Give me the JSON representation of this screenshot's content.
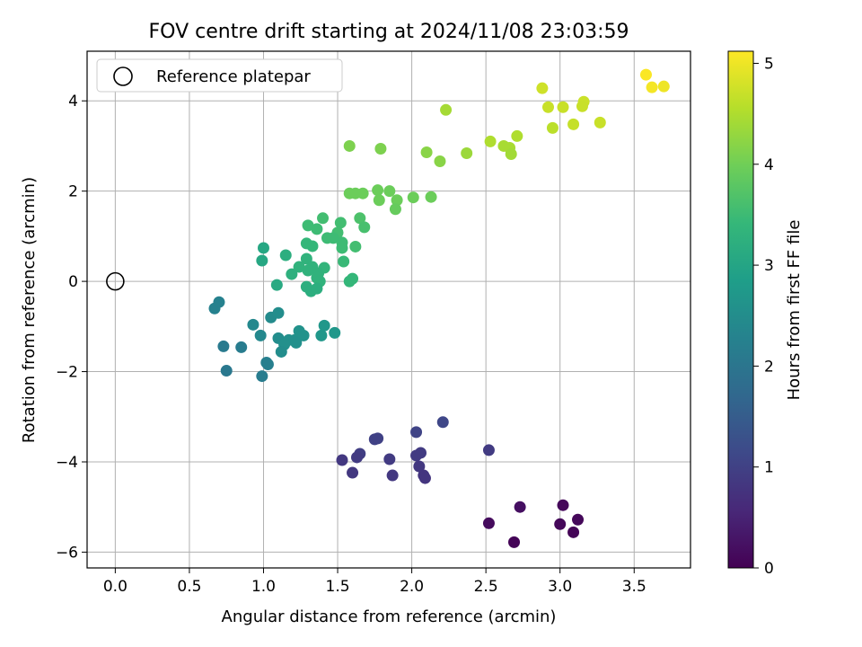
{
  "chart_data": {
    "type": "scatter",
    "title": "FOV centre drift starting at 2024/11/08 23:03:59",
    "xlabel": "Angular distance from reference (arcmin)",
    "ylabel": "Rotation from reference (arcmin)",
    "xlim": [
      -0.19,
      3.88
    ],
    "ylim": [
      -6.35,
      5.1
    ],
    "xticks": [
      "0.0",
      "0.5",
      "1.0",
      "1.5",
      "2.0",
      "2.5",
      "3.0",
      "3.5"
    ],
    "xtick_values": [
      0,
      0.5,
      1.0,
      1.5,
      2.0,
      2.5,
      3.0,
      3.5
    ],
    "yticks": [
      "−6",
      "−4",
      "−2",
      "0",
      "2",
      "4"
    ],
    "ytick_values": [
      -6,
      -4,
      -2,
      0,
      2,
      4
    ],
    "grid": true,
    "legend": {
      "placement": "top-left",
      "entries": [
        "Reference platepar"
      ]
    },
    "reference_point": [
      0,
      0
    ],
    "colorbar": {
      "label": "Hours from first FF file",
      "range": [
        0,
        5.12
      ],
      "ticks": [
        "0",
        "1",
        "2",
        "3",
        "4",
        "5"
      ],
      "tick_values": [
        0,
        1,
        2,
        3,
        4,
        5
      ],
      "colormap": [
        "#440154",
        "#482878",
        "#3e4989",
        "#31688e",
        "#26828e",
        "#1f9e89",
        "#35b779",
        "#6ece58",
        "#b5de2b",
        "#fde725"
      ]
    },
    "points": [
      {
        "x": 3.58,
        "y": 4.58,
        "c": 5.1
      },
      {
        "x": 3.62,
        "y": 4.3,
        "c": 5.05
      },
      {
        "x": 3.7,
        "y": 4.32,
        "c": 5.0
      },
      {
        "x": 2.88,
        "y": 4.28,
        "c": 4.75
      },
      {
        "x": 2.92,
        "y": 3.86,
        "c": 4.7
      },
      {
        "x": 3.02,
        "y": 3.86,
        "c": 4.7
      },
      {
        "x": 3.16,
        "y": 3.98,
        "c": 4.72
      },
      {
        "x": 3.15,
        "y": 3.88,
        "c": 4.7
      },
      {
        "x": 3.09,
        "y": 3.48,
        "c": 4.68
      },
      {
        "x": 3.27,
        "y": 3.52,
        "c": 4.7
      },
      {
        "x": 2.95,
        "y": 3.4,
        "c": 4.6
      },
      {
        "x": 2.71,
        "y": 3.22,
        "c": 4.5
      },
      {
        "x": 2.53,
        "y": 3.1,
        "c": 4.5
      },
      {
        "x": 2.62,
        "y": 3.0,
        "c": 4.45
      },
      {
        "x": 2.66,
        "y": 2.96,
        "c": 4.45
      },
      {
        "x": 2.67,
        "y": 2.82,
        "c": 4.4
      },
      {
        "x": 2.23,
        "y": 3.8,
        "c": 4.42
      },
      {
        "x": 2.37,
        "y": 2.84,
        "c": 4.35
      },
      {
        "x": 2.1,
        "y": 2.86,
        "c": 4.2
      },
      {
        "x": 2.19,
        "y": 2.66,
        "c": 4.2
      },
      {
        "x": 1.58,
        "y": 3.0,
        "c": 4.1
      },
      {
        "x": 1.79,
        "y": 2.94,
        "c": 4.1
      },
      {
        "x": 1.58,
        "y": 1.95,
        "c": 3.95
      },
      {
        "x": 1.62,
        "y": 1.95,
        "c": 3.95
      },
      {
        "x": 1.67,
        "y": 1.95,
        "c": 3.95
      },
      {
        "x": 1.77,
        "y": 2.02,
        "c": 3.95
      },
      {
        "x": 1.85,
        "y": 2.0,
        "c": 3.95
      },
      {
        "x": 1.78,
        "y": 1.8,
        "c": 3.95
      },
      {
        "x": 1.9,
        "y": 1.8,
        "c": 3.95
      },
      {
        "x": 1.89,
        "y": 1.6,
        "c": 3.9
      },
      {
        "x": 2.01,
        "y": 1.86,
        "c": 3.95
      },
      {
        "x": 2.13,
        "y": 1.87,
        "c": 3.95
      },
      {
        "x": 1.3,
        "y": 1.24,
        "c": 3.5
      },
      {
        "x": 1.36,
        "y": 1.16,
        "c": 3.5
      },
      {
        "x": 1.4,
        "y": 1.4,
        "c": 3.55
      },
      {
        "x": 1.52,
        "y": 1.3,
        "c": 3.55
      },
      {
        "x": 1.5,
        "y": 1.08,
        "c": 3.55
      },
      {
        "x": 1.43,
        "y": 0.96,
        "c": 3.5
      },
      {
        "x": 1.47,
        "y": 0.96,
        "c": 3.5
      },
      {
        "x": 1.65,
        "y": 1.4,
        "c": 3.65
      },
      {
        "x": 1.68,
        "y": 1.2,
        "c": 3.6
      },
      {
        "x": 1.29,
        "y": 0.84,
        "c": 3.4
      },
      {
        "x": 1.33,
        "y": 0.78,
        "c": 3.4
      },
      {
        "x": 1.53,
        "y": 0.86,
        "c": 3.5
      },
      {
        "x": 1.53,
        "y": 0.74,
        "c": 3.5
      },
      {
        "x": 1.62,
        "y": 0.77,
        "c": 3.55
      },
      {
        "x": 1.15,
        "y": 0.58,
        "c": 3.2
      },
      {
        "x": 1.29,
        "y": 0.5,
        "c": 3.3
      },
      {
        "x": 1.24,
        "y": 0.32,
        "c": 3.3
      },
      {
        "x": 1.33,
        "y": 0.32,
        "c": 3.3
      },
      {
        "x": 1.41,
        "y": 0.3,
        "c": 3.35
      },
      {
        "x": 1.3,
        "y": 0.24,
        "c": 3.3
      },
      {
        "x": 1.37,
        "y": 0.18,
        "c": 3.3
      },
      {
        "x": 1.19,
        "y": 0.16,
        "c": 3.25
      },
      {
        "x": 1.36,
        "y": 0.08,
        "c": 3.3
      },
      {
        "x": 1.38,
        "y": 0.0,
        "c": 3.3
      },
      {
        "x": 1.54,
        "y": 0.44,
        "c": 3.45
      },
      {
        "x": 1.58,
        "y": 0.0,
        "c": 3.4
      },
      {
        "x": 1.6,
        "y": 0.06,
        "c": 3.4
      },
      {
        "x": 1.29,
        "y": -0.12,
        "c": 3.2
      },
      {
        "x": 1.32,
        "y": -0.22,
        "c": 3.2
      },
      {
        "x": 1.36,
        "y": -0.16,
        "c": 3.2
      },
      {
        "x": 1.09,
        "y": -0.08,
        "c": 3.1
      },
      {
        "x": 0.99,
        "y": 0.46,
        "c": 3.05
      },
      {
        "x": 1.0,
        "y": 0.74,
        "c": 3.05
      },
      {
        "x": 0.67,
        "y": -0.6,
        "c": 2.25
      },
      {
        "x": 0.7,
        "y": -0.46,
        "c": 2.25
      },
      {
        "x": 0.93,
        "y": -0.96,
        "c": 2.4
      },
      {
        "x": 1.05,
        "y": -0.8,
        "c": 2.45
      },
      {
        "x": 1.1,
        "y": -0.7,
        "c": 2.5
      },
      {
        "x": 0.98,
        "y": -1.2,
        "c": 2.4
      },
      {
        "x": 1.1,
        "y": -1.26,
        "c": 2.5
      },
      {
        "x": 1.17,
        "y": -1.3,
        "c": 2.55
      },
      {
        "x": 1.21,
        "y": -1.3,
        "c": 2.55
      },
      {
        "x": 1.24,
        "y": -1.1,
        "c": 2.6
      },
      {
        "x": 1.27,
        "y": -1.2,
        "c": 2.6
      },
      {
        "x": 1.22,
        "y": -1.36,
        "c": 2.55
      },
      {
        "x": 1.14,
        "y": -1.4,
        "c": 2.55
      },
      {
        "x": 1.12,
        "y": -1.56,
        "c": 2.5
      },
      {
        "x": 1.39,
        "y": -1.2,
        "c": 2.7
      },
      {
        "x": 1.41,
        "y": -0.98,
        "c": 2.7
      },
      {
        "x": 1.48,
        "y": -1.14,
        "c": 2.7
      },
      {
        "x": 0.73,
        "y": -1.44,
        "c": 2.1
      },
      {
        "x": 0.85,
        "y": -1.46,
        "c": 2.15
      },
      {
        "x": 0.75,
        "y": -1.98,
        "c": 2.05
      },
      {
        "x": 1.02,
        "y": -1.8,
        "c": 2.2
      },
      {
        "x": 1.03,
        "y": -1.84,
        "c": 2.2
      },
      {
        "x": 0.99,
        "y": -2.1,
        "c": 2.15
      },
      {
        "x": 2.03,
        "y": -3.34,
        "c": 1.05
      },
      {
        "x": 2.21,
        "y": -3.12,
        "c": 1.1
      },
      {
        "x": 1.75,
        "y": -3.5,
        "c": 1.0
      },
      {
        "x": 1.77,
        "y": -3.48,
        "c": 1.0
      },
      {
        "x": 1.65,
        "y": -3.82,
        "c": 0.95
      },
      {
        "x": 1.63,
        "y": -3.9,
        "c": 0.9
      },
      {
        "x": 1.53,
        "y": -3.96,
        "c": 0.85
      },
      {
        "x": 1.6,
        "y": -4.24,
        "c": 0.85
      },
      {
        "x": 1.85,
        "y": -3.94,
        "c": 0.9
      },
      {
        "x": 1.87,
        "y": -4.3,
        "c": 0.85
      },
      {
        "x": 2.03,
        "y": -3.86,
        "c": 0.9
      },
      {
        "x": 2.06,
        "y": -3.8,
        "c": 0.9
      },
      {
        "x": 2.05,
        "y": -4.1,
        "c": 0.85
      },
      {
        "x": 2.08,
        "y": -4.3,
        "c": 0.8
      },
      {
        "x": 2.09,
        "y": -4.36,
        "c": 0.8
      },
      {
        "x": 2.52,
        "y": -3.74,
        "c": 0.9
      },
      {
        "x": 2.73,
        "y": -5.0,
        "c": 0.2
      },
      {
        "x": 2.52,
        "y": -5.36,
        "c": 0.15
      },
      {
        "x": 2.69,
        "y": -5.78,
        "c": 0.05
      },
      {
        "x": 3.02,
        "y": -4.96,
        "c": 0.1
      },
      {
        "x": 3.0,
        "y": -5.38,
        "c": 0.1
      },
      {
        "x": 3.12,
        "y": -5.28,
        "c": 0.1
      },
      {
        "x": 3.09,
        "y": -5.56,
        "c": 0.05
      }
    ]
  }
}
